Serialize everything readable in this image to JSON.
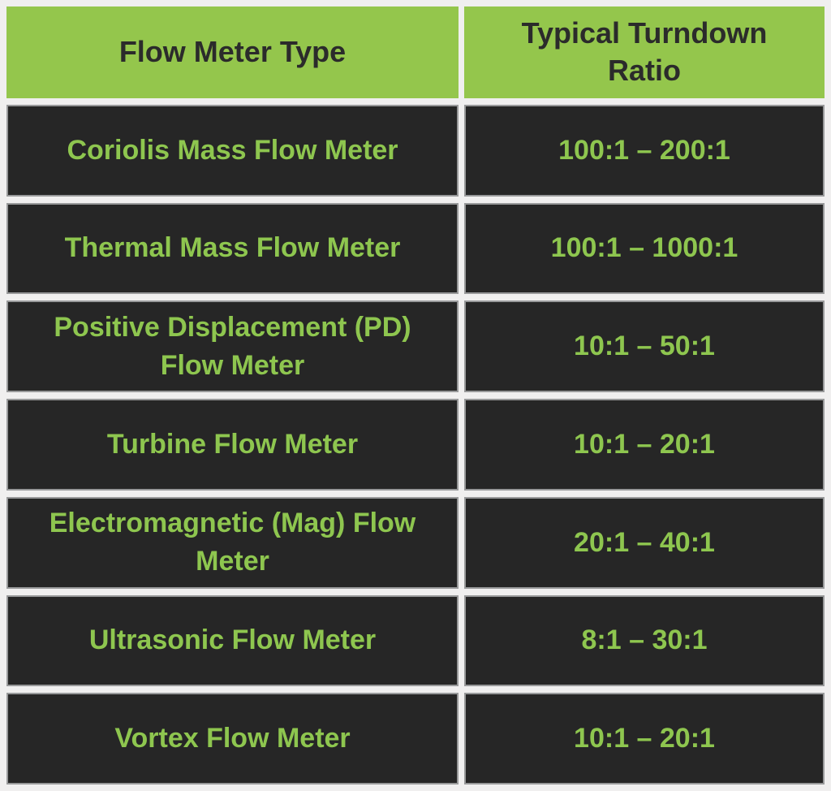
{
  "table": {
    "columns": [
      "Flow Meter Type",
      "Typical Turndown Ratio"
    ],
    "rows": [
      {
        "type": "Coriolis Mass Flow Meter",
        "ratio": "100:1 – 200:1"
      },
      {
        "type": "Thermal Mass Flow Meter",
        "ratio": "100:1 – 1000:1"
      },
      {
        "type": "Positive Displacement (PD) Flow Meter",
        "ratio": "10:1 – 50:1"
      },
      {
        "type": "Turbine Flow Meter",
        "ratio": "10:1 – 20:1"
      },
      {
        "type": "Electromagnetic (Mag) Flow Meter",
        "ratio": "20:1 – 40:1"
      },
      {
        "type": "Ultrasonic Flow Meter",
        "ratio": "8:1 – 30:1"
      },
      {
        "type": "Vortex Flow Meter",
        "ratio": "10:1 – 20:1"
      }
    ]
  },
  "colors": {
    "header_background": "#94c64c",
    "header_text": "#2b2b2b",
    "cell_background": "#262626",
    "cell_text": "#8ec64f",
    "gutter_background": "#f0efef",
    "cell_border": "#98999a"
  },
  "chart_data": {
    "type": "table",
    "title": "",
    "columns": [
      "Flow Meter Type",
      "Typical Turndown Ratio"
    ],
    "rows": [
      [
        "Coriolis Mass Flow Meter",
        "100:1 – 200:1"
      ],
      [
        "Thermal Mass Flow Meter",
        "100:1 – 1000:1"
      ],
      [
        "Positive Displacement (PD) Flow Meter",
        "10:1 – 50:1"
      ],
      [
        "Turbine Flow Meter",
        "10:1 – 20:1"
      ],
      [
        "Electromagnetic (Mag) Flow Meter",
        "20:1 – 40:1"
      ],
      [
        "Ultrasonic Flow Meter",
        "8:1 – 30:1"
      ],
      [
        "Vortex Flow Meter",
        "10:1 – 20:1"
      ]
    ]
  }
}
